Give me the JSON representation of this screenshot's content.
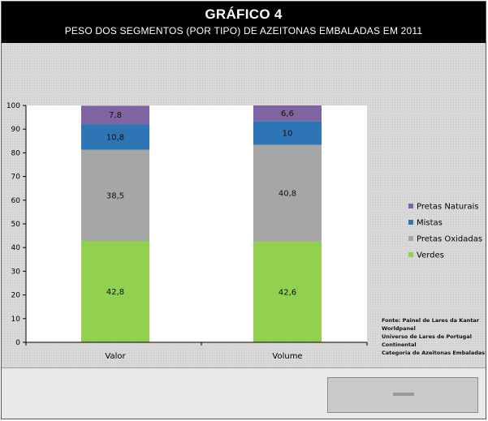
{
  "header": {
    "title": "GRÁFICO 4",
    "subtitle": "PESO DOS SEGMENTOS (POR TIPO) DE AZEITONAS EMBALADAS EM 2011"
  },
  "source_note": {
    "lines": [
      "Fonte: Painel de Lares da Kantar",
      "Worldpanel",
      "Universo de Lares de Portugal",
      "Continental",
      "Categoria de Azeitonas Embaladas"
    ]
  },
  "chart_data": {
    "type": "bar",
    "stacked": true,
    "categories": [
      "Valor",
      "Volume"
    ],
    "series": [
      {
        "name": "Verdes",
        "values": [
          42.8,
          42.6
        ],
        "color": "#92d050"
      },
      {
        "name": "Pretas Oxidadas",
        "values": [
          38.5,
          40.8
        ],
        "color": "#a6a6a6"
      },
      {
        "name": "Mistas",
        "values": [
          10.8,
          10
        ],
        "color": "#2e75b6"
      },
      {
        "name": "Pretas Naturais",
        "values": [
          7.8,
          6.6
        ],
        "color": "#8064a2"
      }
    ],
    "data_labels": [
      [
        "42,8",
        "42,6"
      ],
      [
        "38,5",
        "40,8"
      ],
      [
        "10,8",
        "10"
      ],
      [
        "7,8",
        "6,6"
      ]
    ],
    "y_ticks": [
      "0",
      "10",
      "20",
      "30",
      "40",
      "50",
      "60",
      "70",
      "80",
      "90",
      "100"
    ],
    "ylim": [
      0,
      100
    ],
    "legend_order": [
      "Pretas Naturais",
      "Mistas",
      "Pretas Oxidadas",
      "Verdes"
    ],
    "legend_position": "right",
    "grid": false
  }
}
